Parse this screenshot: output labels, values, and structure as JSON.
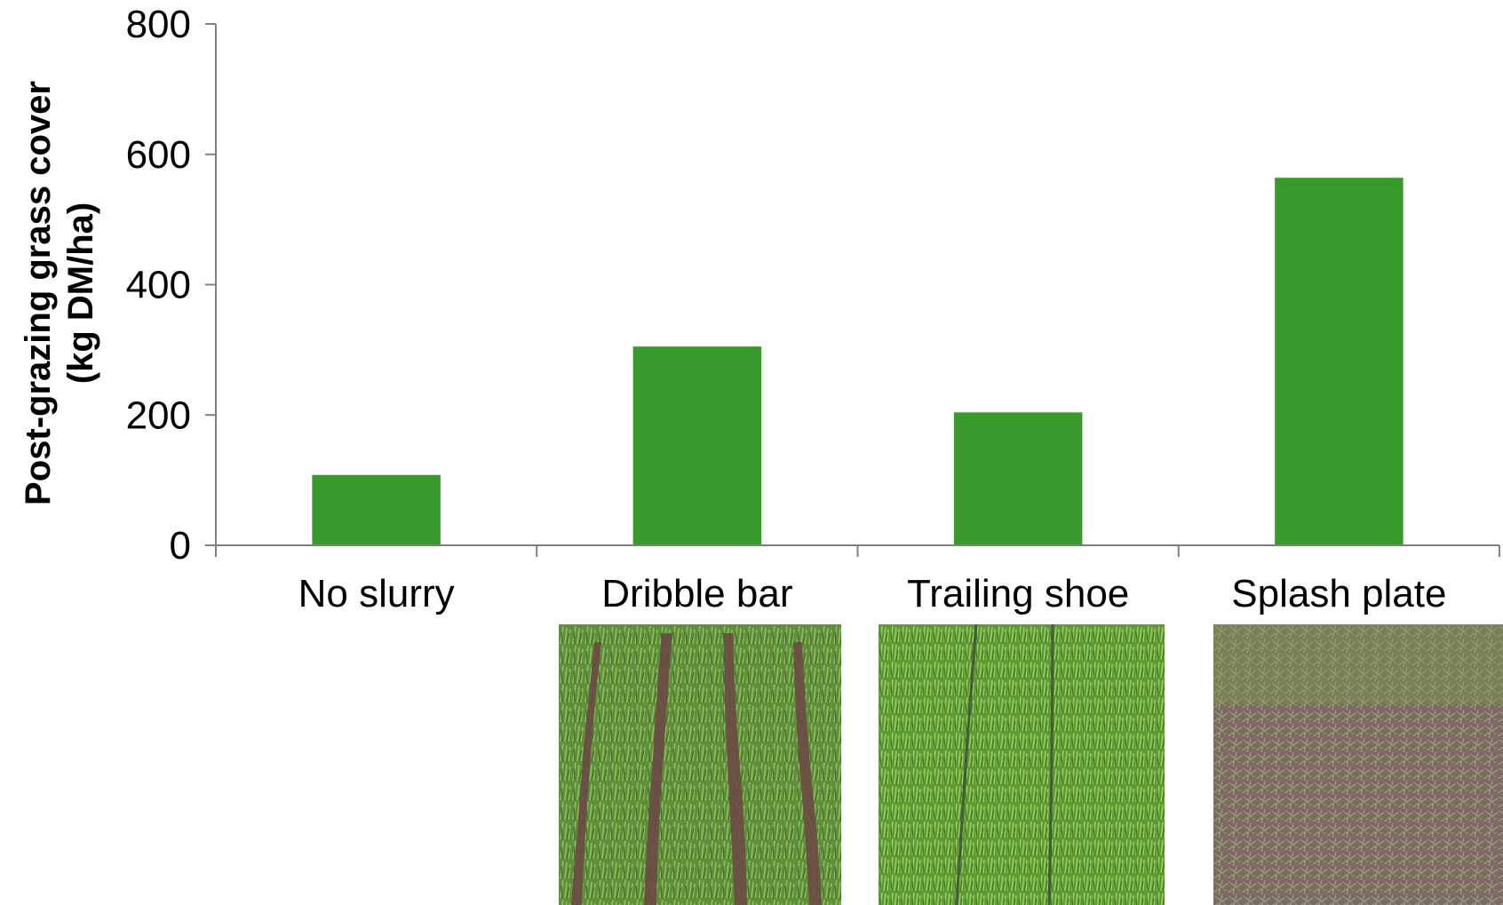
{
  "chart_data": {
    "type": "bar",
    "categories": [
      "No slurry",
      "Dribble bar",
      "Trailing shoe",
      "Splash plate"
    ],
    "values": [
      108,
      305,
      204,
      564
    ],
    "title": "",
    "xlabel": "",
    "ylabel_lines": [
      "Post-grazing grass cover",
      "(kg DM/ha)"
    ],
    "ylim": [
      0,
      800
    ],
    "yticks": [
      0,
      200,
      400,
      600,
      800
    ],
    "grid": false,
    "bar_color": "#379a2b",
    "axis_color": "#7f7f7f"
  },
  "photos": [
    {
      "category": "Dribble bar",
      "pattern": "bands-slurry-strips"
    },
    {
      "category": "Trailing shoe",
      "pattern": "grass-narrow-lines"
    },
    {
      "category": "Splash plate",
      "pattern": "slurry-covered-surface"
    }
  ]
}
